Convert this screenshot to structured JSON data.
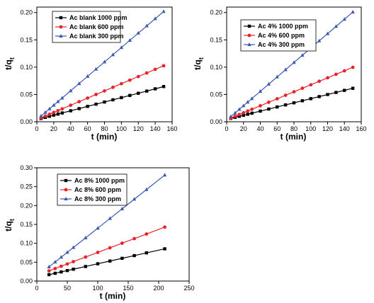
{
  "chart_data": [
    {
      "type": "line",
      "xlabel": "t (min)",
      "ylabel_main": "t/q",
      "ylabel_sub": "t",
      "xlim": [
        0,
        160
      ],
      "ylim": [
        0,
        0.21
      ],
      "xticks": [
        0,
        20,
        40,
        60,
        80,
        100,
        120,
        140,
        160
      ],
      "xtick_labels": [
        "0",
        "20",
        "40",
        "60",
        "80",
        "100",
        "120",
        "140",
        "160"
      ],
      "yticks": [
        0,
        0.05,
        0.1,
        0.15,
        0.2
      ],
      "ytick_labels": [
        "0.00",
        "0.05",
        "0.10",
        "0.15",
        "0.20"
      ],
      "legend_position": "top-left",
      "x": [
        5,
        10,
        15,
        20,
        25,
        30,
        40,
        50,
        60,
        70,
        80,
        90,
        100,
        110,
        120,
        130,
        140,
        150
      ],
      "series": [
        {
          "name": "Ac blank 1000 ppm",
          "color": "#000000",
          "marker": "square",
          "values": [
            0.006,
            0.0081,
            0.0101,
            0.0121,
            0.0141,
            0.0161,
            0.0201,
            0.0241,
            0.0282,
            0.0322,
            0.0362,
            0.0402,
            0.0442,
            0.0482,
            0.0522,
            0.0562,
            0.0603,
            0.0645
          ]
        },
        {
          "name": "Ac blank 600 ppm",
          "color": "#e8242b",
          "marker": "circle",
          "values": [
            0.0072,
            0.0105,
            0.0138,
            0.0171,
            0.0204,
            0.0237,
            0.0302,
            0.0368,
            0.0434,
            0.05,
            0.0565,
            0.0631,
            0.0697,
            0.0762,
            0.0828,
            0.0894,
            0.096,
            0.1025
          ]
        },
        {
          "name": "Ac blank 300 ppm",
          "color": "#3b59b0",
          "marker": "triangle",
          "values": [
            0.0105,
            0.0171,
            0.0237,
            0.0303,
            0.0369,
            0.0435,
            0.0567,
            0.0699,
            0.0831,
            0.0963,
            0.1095,
            0.1227,
            0.1359,
            0.1491,
            0.1623,
            0.1755,
            0.1887,
            0.2019
          ]
        }
      ]
    },
    {
      "type": "line",
      "xlabel": "t (min)",
      "ylabel_main": "t/q",
      "ylabel_sub": "t",
      "xlim": [
        0,
        160
      ],
      "ylim": [
        0,
        0.21
      ],
      "xticks": [
        0,
        20,
        40,
        60,
        80,
        100,
        120,
        140,
        160
      ],
      "xtick_labels": [
        "0",
        "20",
        "40",
        "60",
        "80",
        "100",
        "120",
        "140",
        "160"
      ],
      "yticks": [
        0,
        0.05,
        0.1,
        0.15,
        0.2
      ],
      "ytick_labels": [
        "0.00",
        "0.05",
        "0.10",
        "0.15",
        "0.20"
      ],
      "legend_position": "top-left",
      "x": [
        5,
        10,
        15,
        20,
        25,
        30,
        40,
        50,
        60,
        70,
        80,
        90,
        100,
        110,
        120,
        130,
        140,
        150
      ],
      "series": [
        {
          "name": "Ac 4% 1000 ppm",
          "color": "#000000",
          "marker": "square",
          "values": [
            0.0062,
            0.0081,
            0.01,
            0.0119,
            0.0138,
            0.0157,
            0.0195,
            0.0233,
            0.0271,
            0.0309,
            0.0347,
            0.0385,
            0.0423,
            0.0461,
            0.0499,
            0.0537,
            0.0575,
            0.0613
          ]
        },
        {
          "name": "Ac 4% 600 ppm",
          "color": "#e8242b",
          "marker": "circle",
          "values": [
            0.0069,
            0.0101,
            0.0133,
            0.0165,
            0.0197,
            0.0229,
            0.0293,
            0.0357,
            0.0421,
            0.0485,
            0.0549,
            0.0613,
            0.0677,
            0.0741,
            0.0805,
            0.0869,
            0.0933,
            0.0997
          ]
        },
        {
          "name": "Ac 4% 300 ppm",
          "color": "#3b59b0",
          "marker": "triangle",
          "values": [
            0.0095,
            0.0161,
            0.0227,
            0.0293,
            0.0359,
            0.0425,
            0.0557,
            0.0689,
            0.0821,
            0.0953,
            0.1085,
            0.1217,
            0.1349,
            0.1481,
            0.1613,
            0.1745,
            0.1877,
            0.2009
          ]
        }
      ]
    },
    {
      "type": "line",
      "xlabel": "t (min)",
      "ylabel_main": "t/q",
      "ylabel_sub": "t",
      "xlim": [
        0,
        250
      ],
      "ylim": [
        0,
        0.3
      ],
      "xticks": [
        0,
        50,
        100,
        150,
        200,
        250
      ],
      "xtick_labels": [
        "0",
        "50",
        "100",
        "150",
        "200",
        "250"
      ],
      "yticks": [
        0,
        0.05,
        0.1,
        0.15,
        0.2,
        0.25,
        0.3
      ],
      "ytick_labels": [
        "0.00",
        "0.05",
        "0.10",
        "0.15",
        "0.20",
        "0.25",
        "0.30"
      ],
      "legend_position": "top-left",
      "x": [
        20,
        30,
        40,
        50,
        60,
        80,
        100,
        120,
        140,
        160,
        180,
        210
      ],
      "series": [
        {
          "name": "Ac 8% 1000 ppm",
          "color": "#000000",
          "marker": "square",
          "values": [
            0.017,
            0.0206,
            0.0242,
            0.0278,
            0.0314,
            0.0386,
            0.0458,
            0.053,
            0.0602,
            0.0674,
            0.0746,
            0.0854
          ]
        },
        {
          "name": "Ac 8% 600 ppm",
          "color": "#e8242b",
          "marker": "circle",
          "values": [
            0.027,
            0.0331,
            0.0392,
            0.0453,
            0.0514,
            0.0636,
            0.0758,
            0.088,
            0.1002,
            0.1124,
            0.1246,
            0.1429
          ]
        },
        {
          "name": "Ac 8% 300 ppm",
          "color": "#3b59b0",
          "marker": "triangle",
          "values": [
            0.0376,
            0.0504,
            0.0632,
            0.076,
            0.0888,
            0.1144,
            0.14,
            0.1656,
            0.1912,
            0.2168,
            0.2424,
            0.2808
          ]
        }
      ]
    }
  ]
}
